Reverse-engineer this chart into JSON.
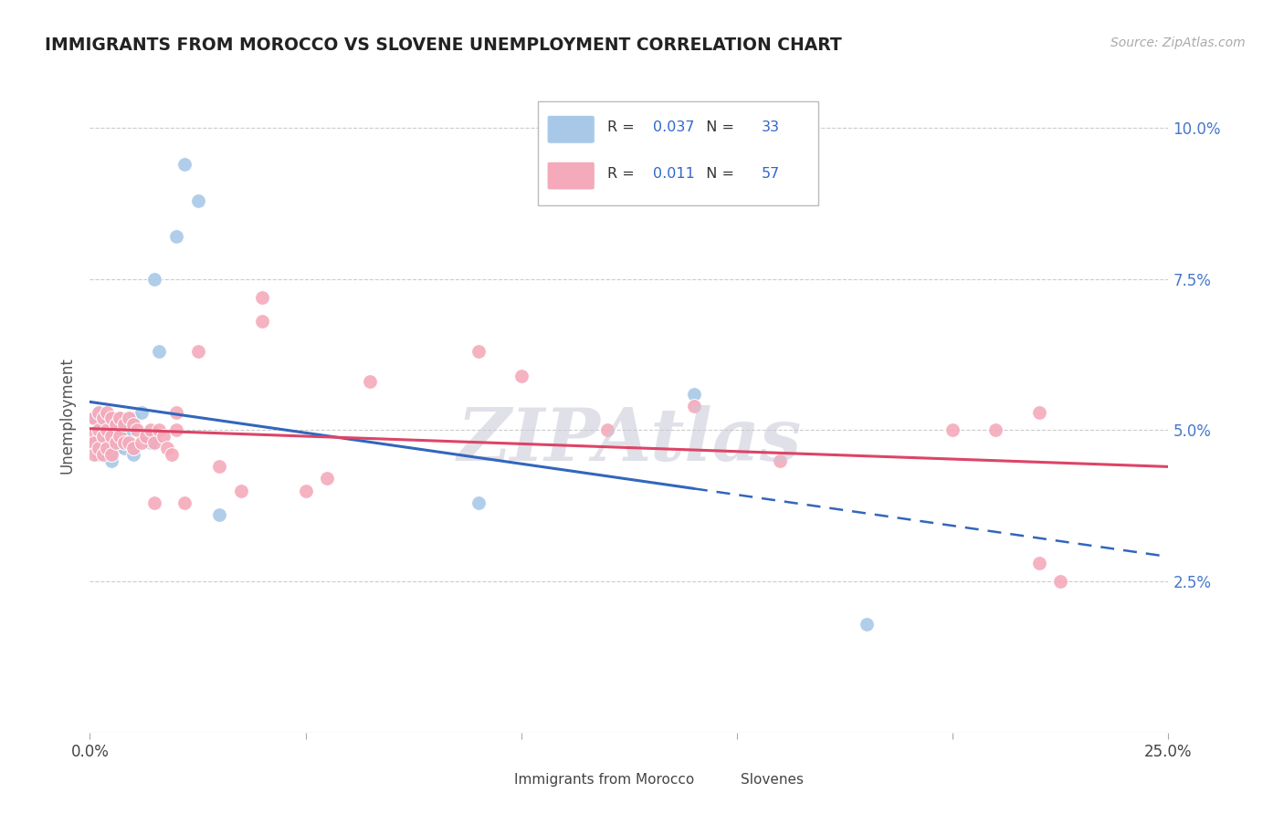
{
  "title": "IMMIGRANTS FROM MOROCCO VS SLOVENE UNEMPLOYMENT CORRELATION CHART",
  "source": "Source: ZipAtlas.com",
  "ylabel": "Unemployment",
  "series1_color": "#a8c8e8",
  "series2_color": "#f4aabb",
  "trendline1_color": "#3366bb",
  "trendline2_color": "#dd4466",
  "trendline1_style": "solid",
  "trendline2_style": "solid",
  "background_color": "#ffffff",
  "grid_color": "#cccccc",
  "watermark": "ZIPAtlas",
  "legend_r1": "0.037",
  "legend_n1": "33",
  "legend_r2": "0.011",
  "legend_n2": "57",
  "xlim": [
    0.0,
    0.25
  ],
  "ylim": [
    0.0,
    0.105
  ],
  "morocco_x": [
    0.001,
    0.001,
    0.002,
    0.002,
    0.002,
    0.003,
    0.003,
    0.003,
    0.004,
    0.004,
    0.005,
    0.005,
    0.006,
    0.006,
    0.007,
    0.007,
    0.008,
    0.008,
    0.009,
    0.01,
    0.01,
    0.012,
    0.013,
    0.014,
    0.015,
    0.016,
    0.02,
    0.022,
    0.025,
    0.03,
    0.14,
    0.09,
    0.18
  ],
  "morocco_y": [
    0.052,
    0.048,
    0.053,
    0.049,
    0.046,
    0.051,
    0.05,
    0.047,
    0.052,
    0.048,
    0.051,
    0.045,
    0.05,
    0.047,
    0.052,
    0.048,
    0.051,
    0.047,
    0.05,
    0.052,
    0.046,
    0.053,
    0.049,
    0.048,
    0.075,
    0.063,
    0.082,
    0.094,
    0.088,
    0.036,
    0.056,
    0.038,
    0.018
  ],
  "slovene_x": [
    0.0,
    0.001,
    0.001,
    0.001,
    0.002,
    0.002,
    0.002,
    0.003,
    0.003,
    0.003,
    0.004,
    0.004,
    0.004,
    0.005,
    0.005,
    0.005,
    0.006,
    0.006,
    0.007,
    0.007,
    0.008,
    0.008,
    0.009,
    0.009,
    0.01,
    0.01,
    0.011,
    0.012,
    0.013,
    0.014,
    0.015,
    0.015,
    0.016,
    0.017,
    0.018,
    0.019,
    0.02,
    0.02,
    0.022,
    0.025,
    0.03,
    0.035,
    0.04,
    0.04,
    0.05,
    0.055,
    0.065,
    0.09,
    0.1,
    0.12,
    0.14,
    0.16,
    0.2,
    0.21,
    0.22,
    0.22,
    0.225
  ],
  "slovene_y": [
    0.049,
    0.052,
    0.048,
    0.046,
    0.053,
    0.05,
    0.047,
    0.052,
    0.049,
    0.046,
    0.053,
    0.05,
    0.047,
    0.052,
    0.049,
    0.046,
    0.051,
    0.048,
    0.052,
    0.049,
    0.051,
    0.048,
    0.052,
    0.048,
    0.051,
    0.047,
    0.05,
    0.048,
    0.049,
    0.05,
    0.048,
    0.038,
    0.05,
    0.049,
    0.047,
    0.046,
    0.053,
    0.05,
    0.038,
    0.063,
    0.044,
    0.04,
    0.068,
    0.072,
    0.04,
    0.042,
    0.058,
    0.063,
    0.059,
    0.05,
    0.054,
    0.045,
    0.05,
    0.05,
    0.053,
    0.028,
    0.025
  ]
}
